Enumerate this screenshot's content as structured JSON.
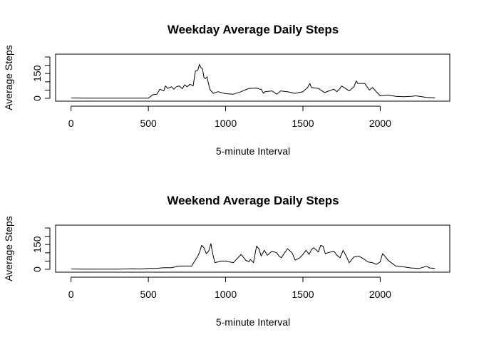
{
  "chart_data": [
    {
      "type": "line",
      "title": "Weekday Average Daily Steps",
      "xlabel": "5-minute Interval",
      "ylabel": "Average Steps",
      "xlim": [
        -100,
        2450
      ],
      "ylim": [
        0,
        250
      ],
      "x_ticks": [
        0,
        500,
        1000,
        1500,
        2000
      ],
      "y_ticks": [
        0,
        50,
        100,
        150,
        200,
        250
      ],
      "y_tick_labels": [
        "0",
        "",
        "",
        "150",
        "",
        ""
      ],
      "grid": false,
      "series": [
        {
          "x": [
            0,
            100,
            200,
            300,
            400,
            500,
            530,
            555,
            575,
            600,
            610,
            625,
            650,
            665,
            680,
            700,
            720,
            735,
            750,
            770,
            790,
            800,
            805,
            820,
            830,
            840,
            850,
            860,
            870,
            880,
            890,
            900,
            920,
            950,
            1000,
            1050,
            1100,
            1150,
            1200,
            1220,
            1230,
            1245,
            1255,
            1300,
            1330,
            1345,
            1355,
            1400,
            1450,
            1500,
            1530,
            1545,
            1555,
            1600,
            1640,
            1700,
            1720,
            1740,
            1750,
            1800,
            1830,
            1845,
            1855,
            1900,
            1915,
            1930,
            1950,
            2000,
            2050,
            2100,
            2150,
            2200,
            2230,
            2300,
            2355
          ],
          "y": [
            2,
            1,
            1,
            1,
            1,
            1,
            22,
            25,
            55,
            45,
            75,
            60,
            70,
            55,
            70,
            75,
            58,
            82,
            70,
            85,
            75,
            140,
            165,
            170,
            205,
            185,
            180,
            125,
            120,
            130,
            85,
            50,
            30,
            40,
            28,
            25,
            40,
            60,
            62,
            55,
            55,
            30,
            40,
            45,
            25,
            35,
            45,
            40,
            30,
            40,
            65,
            90,
            65,
            60,
            35,
            55,
            40,
            60,
            75,
            45,
            70,
            105,
            90,
            90,
            70,
            50,
            65,
            15,
            20,
            12,
            10,
            12,
            15,
            5,
            3
          ]
        }
      ]
    },
    {
      "type": "line",
      "title": "Weekend Average Daily Steps",
      "xlabel": "5-minute Interval",
      "ylabel": "Average Steps",
      "xlim": [
        -100,
        2450
      ],
      "ylim": [
        0,
        250
      ],
      "x_ticks": [
        0,
        500,
        1000,
        1500,
        2000
      ],
      "y_ticks": [
        0,
        50,
        100,
        150,
        200,
        250
      ],
      "y_tick_labels": [
        "0",
        "",
        "",
        "150",
        "",
        ""
      ],
      "grid": false,
      "series": [
        {
          "x": [
            0,
            100,
            200,
            300,
            400,
            450,
            500,
            550,
            600,
            650,
            700,
            750,
            780,
            800,
            820,
            830,
            845,
            860,
            875,
            890,
            905,
            915,
            930,
            950,
            970,
            1000,
            1050,
            1100,
            1130,
            1150,
            1160,
            1180,
            1200,
            1215,
            1230,
            1250,
            1270,
            1300,
            1330,
            1345,
            1360,
            1400,
            1430,
            1450,
            1480,
            1500,
            1520,
            1540,
            1555,
            1570,
            1600,
            1615,
            1630,
            1645,
            1660,
            1700,
            1720,
            1740,
            1760,
            1780,
            1800,
            1830,
            1860,
            1890,
            1920,
            1950,
            1975,
            2000,
            2015,
            2030,
            2050,
            2100,
            2150,
            2200,
            2250,
            2300,
            2320,
            2355
          ],
          "y": [
            2,
            1,
            1,
            1,
            3,
            2,
            5,
            5,
            10,
            10,
            20,
            20,
            20,
            50,
            80,
            100,
            145,
            130,
            95,
            110,
            155,
            100,
            40,
            45,
            50,
            50,
            40,
            90,
            55,
            45,
            60,
            40,
            140,
            125,
            80,
            115,
            85,
            110,
            100,
            80,
            70,
            125,
            100,
            55,
            70,
            90,
            115,
            90,
            120,
            130,
            105,
            145,
            140,
            95,
            100,
            110,
            85,
            70,
            115,
            80,
            40,
            75,
            80,
            65,
            45,
            40,
            30,
            45,
            95,
            80,
            55,
            20,
            15,
            8,
            5,
            18,
            8,
            5
          ]
        }
      ]
    }
  ]
}
